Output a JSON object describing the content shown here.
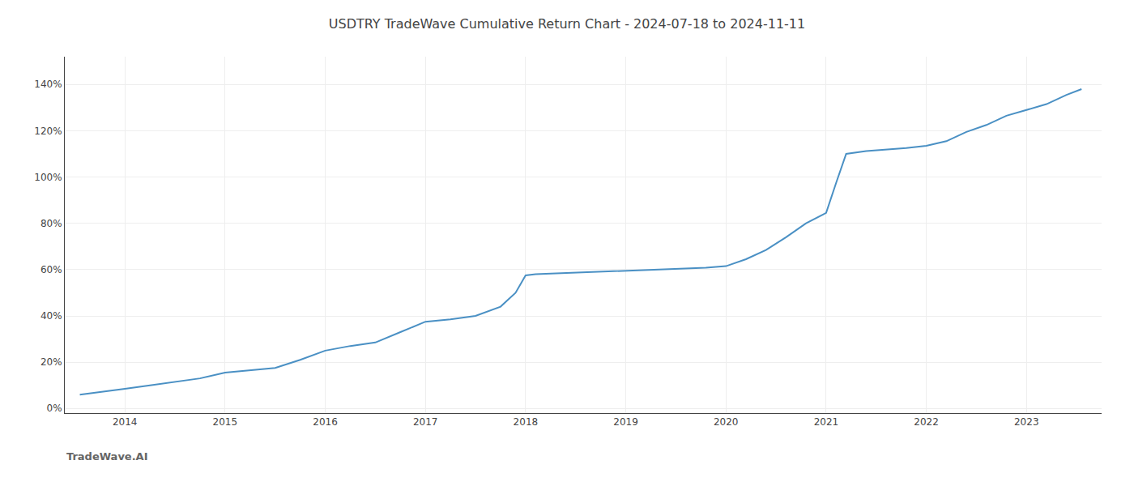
{
  "chart_data": {
    "type": "line",
    "title": "USDTRY TradeWave Cumulative Return Chart - 2024-07-18 to 2024-11-11",
    "annotations": [
      "TradeWave.AI"
    ],
    "color": "#4a90c4",
    "grid": true,
    "x": [
      2013.55,
      2013.75,
      2014.0,
      2014.25,
      2014.5,
      2014.75,
      2015.0,
      2015.25,
      2015.5,
      2015.75,
      2016.0,
      2016.25,
      2016.5,
      2016.75,
      2017.0,
      2017.25,
      2017.5,
      2017.75,
      2017.9,
      2018.0,
      2018.05,
      2018.1,
      2018.2,
      2018.4,
      2018.6,
      2018.8,
      2019.0,
      2019.2,
      2019.4,
      2019.6,
      2019.8,
      2020.0,
      2020.2,
      2020.4,
      2020.6,
      2020.8,
      2021.0,
      2021.1,
      2021.2,
      2021.4,
      2021.6,
      2021.8,
      2022.0,
      2022.2,
      2022.4,
      2022.6,
      2022.8,
      2023.0,
      2023.2,
      2023.4,
      2023.55
    ],
    "values": [
      0.06,
      0.07,
      0.085,
      0.1,
      0.115,
      0.13,
      0.155,
      0.165,
      0.175,
      0.21,
      0.25,
      0.27,
      0.285,
      0.33,
      0.375,
      0.385,
      0.4,
      0.44,
      0.5,
      0.575,
      0.578,
      0.58,
      0.582,
      0.585,
      0.588,
      0.592,
      0.595,
      0.598,
      0.6,
      0.603,
      0.608,
      0.615,
      0.645,
      0.685,
      0.74,
      0.8,
      0.845,
      0.975,
      1.1,
      1.112,
      1.118,
      1.125,
      1.135,
      1.155,
      1.195,
      1.225,
      1.265,
      1.29,
      1.315,
      1.355,
      1.38
    ],
    "xlim": [
      2013.4,
      2023.75
    ],
    "xticks": [
      2014,
      2015,
      2016,
      2017,
      2018,
      2019,
      2020,
      2021,
      2022,
      2023
    ],
    "ylim": [
      -0.02,
      1.52
    ],
    "yticks": [
      {
        "value": 0.0,
        "label": "0%"
      },
      {
        "value": 0.2,
        "label": "20%"
      },
      {
        "value": 0.4,
        "label": "40%"
      },
      {
        "value": 0.6,
        "label": "60%"
      },
      {
        "value": 0.8,
        "label": "80%"
      },
      {
        "value": 1.0,
        "label": "100%"
      },
      {
        "value": 1.2,
        "label": "120%"
      },
      {
        "value": 1.4,
        "label": "140%"
      }
    ]
  }
}
